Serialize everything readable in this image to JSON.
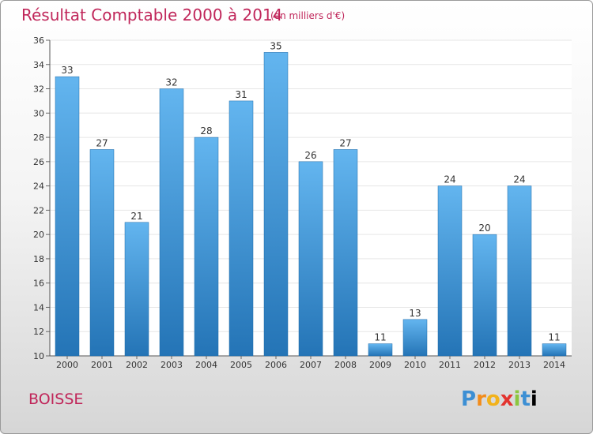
{
  "header": {
    "title": "Résultat Comptable 2000 à 2014",
    "subtitle": "(en milliers d'€)"
  },
  "footer": {
    "place": "BOISSE",
    "logo_text": "Proxiti"
  },
  "colors": {
    "accent": "#c0265a",
    "bar_top": "#63b5ef",
    "bar_bottom": "#2474b6",
    "grid": "#e6e6e6"
  },
  "chart_data": {
    "type": "bar",
    "title": "Résultat Comptable 2000 à 2014",
    "subtitle": "(en milliers d'€)",
    "xlabel": "",
    "ylabel": "",
    "categories": [
      "2000",
      "2001",
      "2002",
      "2003",
      "2004",
      "2005",
      "2006",
      "2007",
      "2008",
      "2009",
      "2010",
      "2011",
      "2012",
      "2013",
      "2014"
    ],
    "values": [
      33,
      27,
      21,
      32,
      28,
      31,
      35,
      26,
      27,
      11,
      13,
      24,
      20,
      24,
      11
    ],
    "ylim": [
      10,
      36
    ],
    "yticks": [
      10,
      12,
      14,
      16,
      18,
      20,
      22,
      24,
      26,
      28,
      30,
      32,
      34,
      36
    ],
    "grid": true
  }
}
